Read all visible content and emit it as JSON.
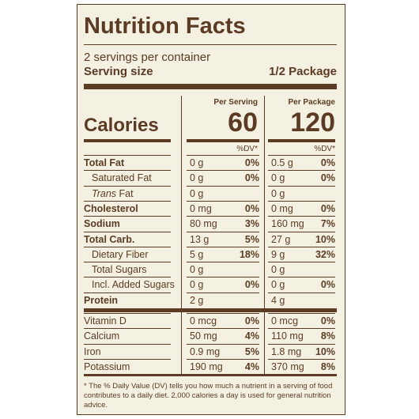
{
  "title": "Nutrition Facts",
  "servings": "2 servings per container",
  "serving_size_label": "Serving size",
  "serving_size": "1/2 Package",
  "calories_label": "Calories",
  "columns": [
    {
      "heading": "Per Serving",
      "calories": 60,
      "dv_heading": "%DV*"
    },
    {
      "heading": "Per Package",
      "calories": 120,
      "dv_heading": "%DV*"
    }
  ],
  "rows": [
    {
      "label": "Total Fat",
      "per_serving": {
        "amount": "0 g",
        "dv": "0%"
      },
      "per_package": {
        "amount": "0.5 g",
        "dv": "0%"
      }
    },
    {
      "label": "Saturated Fat",
      "per_serving": {
        "amount": "0 g",
        "dv": "0%"
      },
      "per_package": {
        "amount": "0 g",
        "dv": "0%"
      }
    },
    {
      "label_italic": "Trans",
      "label": "Fat",
      "per_serving": {
        "amount": "0 g"
      },
      "per_package": {
        "amount": "0 g"
      }
    },
    {
      "label": "Cholesterol",
      "per_serving": {
        "amount": "0 mg",
        "dv": "0%"
      },
      "per_package": {
        "amount": "0 mg",
        "dv": "0%"
      }
    },
    {
      "label": "Sodium",
      "per_serving": {
        "amount": "80 mg",
        "dv": "3%"
      },
      "per_package": {
        "amount": "160 mg",
        "dv": "7%"
      }
    },
    {
      "label": "Total Carb.",
      "per_serving": {
        "amount": "13 g",
        "dv": "5%"
      },
      "per_package": {
        "amount": "27 g",
        "dv": "10%"
      }
    },
    {
      "label": "Dietary Fiber",
      "per_serving": {
        "amount": "5 g",
        "dv": "18%"
      },
      "per_package": {
        "amount": "9 g",
        "dv": "32%"
      }
    },
    {
      "label": "Total Sugars",
      "per_serving": {
        "amount": "0 g"
      },
      "per_package": {
        "amount": "0 g"
      }
    },
    {
      "label": "Incl. Added Sugars",
      "per_serving": {
        "amount": "0 g",
        "dv": "0%"
      },
      "per_package": {
        "amount": "0 g",
        "dv": "0%"
      }
    },
    {
      "label": "Protein",
      "per_serving": {
        "amount": "2 g"
      },
      "per_package": {
        "amount": "4 g"
      }
    }
  ],
  "vitamins": [
    {
      "label": "Vitamin D",
      "per_serving": {
        "amount": "0 mcg",
        "dv": "0%"
      },
      "per_package": {
        "amount": "0 mcg",
        "dv": "0%"
      }
    },
    {
      "label": "Calcium",
      "per_serving": {
        "amount": "50 mg",
        "dv": "4%"
      },
      "per_package": {
        "amount": "110 mg",
        "dv": "8%"
      }
    },
    {
      "label": "Iron",
      "per_serving": {
        "amount": "0.9 mg",
        "dv": "5%"
      },
      "per_package": {
        "amount": "1.8 mg",
        "dv": "10%"
      }
    },
    {
      "label": "Potassium",
      "per_serving": {
        "amount": "190 mg",
        "dv": "4%"
      },
      "per_package": {
        "amount": "370 mg",
        "dv": "8%"
      }
    }
  ],
  "footnote": "* The % Daily Value (DV) tells you how much a nutrient in a serving of food contributes to a daily diet. 2,000 calories a day is used for general nutrition advice."
}
